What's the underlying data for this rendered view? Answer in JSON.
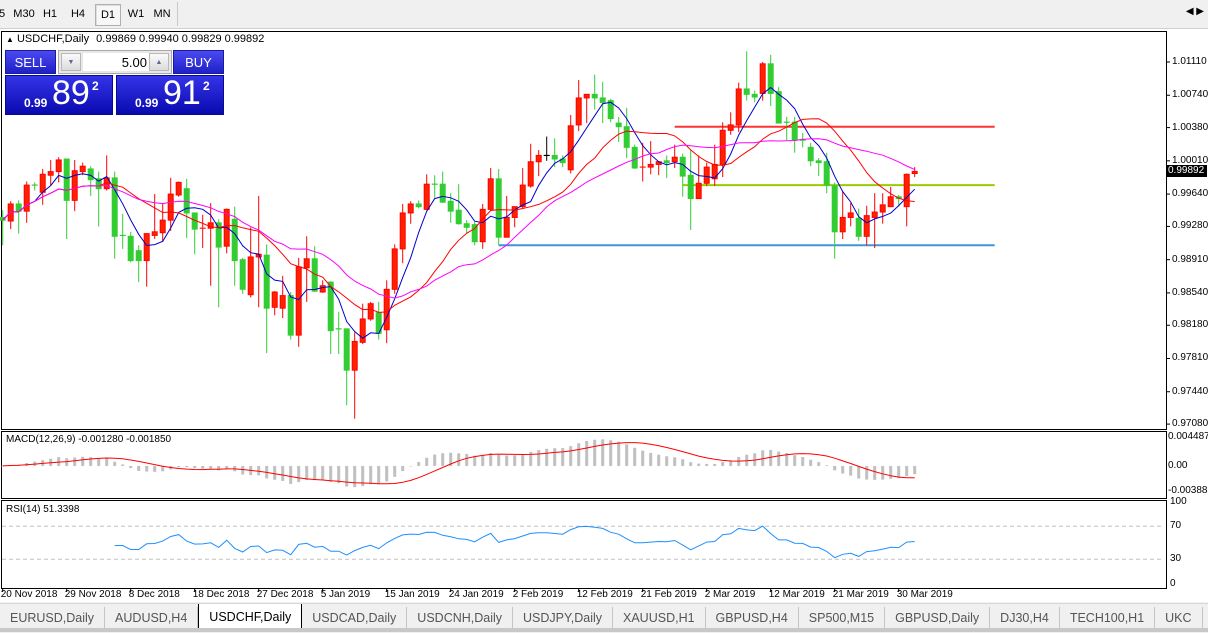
{
  "toolbar": {
    "timeframes": [
      {
        "label": "5",
        "active": false
      },
      {
        "label": "M30",
        "active": false
      },
      {
        "label": "H1",
        "active": false
      },
      {
        "label": "H4",
        "active": false
      },
      {
        "label": "D1",
        "active": true
      },
      {
        "label": "W1",
        "active": false
      },
      {
        "label": "MN",
        "active": false
      }
    ]
  },
  "chart": {
    "header_arrow": "▲",
    "symbol": "USDCHF,Daily",
    "ohlc": "0.99869 0.99940 0.99829 0.99892",
    "last_price": "0.99892",
    "price_axis": [
      "1.01110",
      "1.00740",
      "1.00380",
      "1.00010",
      "0.99640",
      "0.99280",
      "0.98910",
      "0.98540",
      "0.98180",
      "0.97810",
      "0.97440",
      "0.97080"
    ],
    "date_labels": [
      "20 Nov 2018",
      "29 Nov 2018",
      "8 Dec 2018",
      "18 Dec 2018",
      "27 Dec 2018",
      "5 Jan 2019",
      "15 Jan 2019",
      "24 Jan 2019",
      "2 Feb 2019",
      "12 Feb 2019",
      "21 Feb 2019",
      "2 Mar 2019",
      "12 Mar 2019",
      "21 Mar 2019",
      "30 Mar 2019"
    ]
  },
  "trade_panel": {
    "sell_label": "SELL",
    "buy_label": "BUY",
    "lot": "5.00",
    "down_arrow": "▼",
    "up_arrow": "▲",
    "sell_price": {
      "prefix": "0.99",
      "big": "89",
      "sup": "2"
    },
    "buy_price": {
      "prefix": "0.99",
      "big": "91",
      "sup": "2"
    }
  },
  "macd": {
    "label": "MACD(12,26,9) -0.001280 -0.001850",
    "axis": [
      "0.004487",
      "0.00",
      "-0.003883"
    ]
  },
  "rsi": {
    "label": "RSI(14) 51.3398",
    "axis": [
      "100",
      "70",
      "30",
      "0"
    ]
  },
  "colors": {
    "bull_candle": "#ff2200",
    "bear_candle": "#32cd32",
    "ma_fast": "#0000cc",
    "ma_mid": "#ff0000",
    "ma_slow": "#ff00ff",
    "macd_hist": "#c0c0c0",
    "macd_signal": "#ff0000",
    "rsi_line": "#1e90ff",
    "accent_panel": "#2222d0"
  },
  "tabs": [
    {
      "label": "EURUSD,Daily",
      "active": false
    },
    {
      "label": "AUDUSD,H4",
      "active": false
    },
    {
      "label": "USDCHF,Daily",
      "active": true
    },
    {
      "label": "USDCAD,Daily",
      "active": false
    },
    {
      "label": "USDCNH,Daily",
      "active": false
    },
    {
      "label": "USDJPY,Daily",
      "active": false
    },
    {
      "label": "XAUUSD,H1",
      "active": false
    },
    {
      "label": "GBPUSD,H4",
      "active": false
    },
    {
      "label": "SP500,M15",
      "active": false
    },
    {
      "label": "GBPUSD,Daily",
      "active": false
    },
    {
      "label": "DJ30,H4",
      "active": false
    },
    {
      "label": "TECH100,H1",
      "active": false
    },
    {
      "label": "UKC",
      "active": false
    }
  ],
  "tab_nav": "◀ ▶",
  "chart_data": {
    "type": "candlestick",
    "symbol": "USDCHF",
    "timeframe": "Daily",
    "ylim": [
      0.9708,
      1.0111
    ],
    "grid": false,
    "ohlc": [
      [
        0.9938,
        0.9946,
        0.9907,
        0.9935
      ],
      [
        0.9934,
        0.9956,
        0.9925,
        0.9953
      ],
      [
        0.9953,
        0.9957,
        0.992,
        0.9945
      ],
      [
        0.9945,
        0.9978,
        0.9932,
        0.9974
      ],
      [
        0.9974,
        0.9977,
        0.9968,
        0.9973
      ],
      [
        0.9966,
        0.9992,
        0.9952,
        0.9986
      ],
      [
        0.9985,
        1.0002,
        0.9974,
        0.9989
      ],
      [
        0.9989,
        1.0005,
        0.9977,
        1.0002
      ],
      [
        1.0003,
        1.0003,
        0.9914,
        0.9957
      ],
      [
        0.9957,
        1.0002,
        0.9945,
        0.999
      ],
      [
        0.9989,
        0.9999,
        0.9985,
        0.9995
      ],
      [
        0.9992,
        0.9995,
        0.9962,
        0.998
      ],
      [
        0.9981,
        0.9989,
        0.9928,
        0.997
      ],
      [
        0.997,
        1.0007,
        0.9968,
        0.9982
      ],
      [
        0.9982,
        0.9989,
        0.9892,
        0.9917
      ],
      [
        0.9918,
        0.9942,
        0.9903,
        0.9917
      ],
      [
        0.9917,
        0.9922,
        0.9888,
        0.989
      ],
      [
        0.9901,
        0.9907,
        0.9866,
        0.989
      ],
      [
        0.989,
        0.992,
        0.9861,
        0.992
      ],
      [
        0.9918,
        0.9964,
        0.9914,
        0.9922
      ],
      [
        0.9921,
        0.9953,
        0.9911,
        0.9935
      ],
      [
        0.9935,
        0.9982,
        0.9923,
        0.9964
      ],
      [
        0.9963,
        0.9978,
        0.9961,
        0.9977
      ],
      [
        0.997,
        0.9981,
        0.9915,
        0.9943
      ],
      [
        0.9943,
        0.9943,
        0.9897,
        0.9925
      ],
      [
        0.9925,
        0.9941,
        0.9904,
        0.9926
      ],
      [
        0.9926,
        0.9954,
        0.9862,
        0.9932
      ],
      [
        0.9932,
        0.9936,
        0.9838,
        0.9905
      ],
      [
        0.9906,
        0.9948,
        0.9898,
        0.9947
      ],
      [
        0.9936,
        0.995,
        0.9862,
        0.989
      ],
      [
        0.9891,
        0.9893,
        0.9853,
        0.9858
      ],
      [
        0.9852,
        0.9927,
        0.9849,
        0.9894
      ],
      [
        0.9894,
        0.9962,
        0.9838,
        0.9897
      ],
      [
        0.9896,
        0.9908,
        0.9787,
        0.9837
      ],
      [
        0.9838,
        0.9856,
        0.9829,
        0.9855
      ],
      [
        0.9837,
        0.9873,
        0.9826,
        0.9851
      ],
      [
        0.9851,
        0.9855,
        0.9802,
        0.9807
      ],
      [
        0.9807,
        0.9893,
        0.9794,
        0.9883
      ],
      [
        0.9882,
        0.9917,
        0.9844,
        0.9892
      ],
      [
        0.9892,
        0.9906,
        0.9855,
        0.9856
      ],
      [
        0.9855,
        0.9868,
        0.9854,
        0.9862
      ],
      [
        0.9866,
        0.9867,
        0.9786,
        0.9812
      ],
      [
        0.9814,
        0.9833,
        0.9786,
        0.9813
      ],
      [
        0.9814,
        0.9814,
        0.9729,
        0.9768
      ],
      [
        0.9768,
        0.981,
        0.9714,
        0.98
      ],
      [
        0.9799,
        0.9842,
        0.9797,
        0.9825
      ],
      [
        0.9825,
        0.9844,
        0.9823,
        0.9842
      ],
      [
        0.9832,
        0.9844,
        0.9802,
        0.9809
      ],
      [
        0.9813,
        0.9868,
        0.9798,
        0.9858
      ],
      [
        0.9858,
        0.9908,
        0.9853,
        0.9903
      ],
      [
        0.9903,
        0.9953,
        0.9887,
        0.9943
      ],
      [
        0.9943,
        0.9956,
        0.9931,
        0.9953
      ],
      [
        0.9953,
        0.9957,
        0.9948,
        0.995
      ],
      [
        0.9947,
        0.9986,
        0.9946,
        0.9975
      ],
      [
        0.9975,
        0.9985,
        0.996,
        0.9974
      ],
      [
        0.9975,
        0.9989,
        0.9954,
        0.9955
      ],
      [
        0.9956,
        0.9965,
        0.9932,
        0.9945
      ],
      [
        0.9946,
        0.9975,
        0.993,
        0.9931
      ],
      [
        0.9931,
        0.9935,
        0.992,
        0.9927
      ],
      [
        0.993,
        0.9933,
        0.9907,
        0.9911
      ],
      [
        0.9911,
        0.9953,
        0.9903,
        0.9947
      ],
      [
        0.9947,
        0.9993,
        0.9946,
        0.9981
      ],
      [
        0.9981,
        0.9992,
        0.9907,
        0.9916
      ],
      [
        0.9916,
        0.9962,
        0.9916,
        0.9938
      ],
      [
        0.9938,
        0.995,
        0.9927,
        0.995
      ],
      [
        0.995,
        0.9993,
        0.9948,
        0.9974
      ],
      [
        0.9973,
        1.002,
        0.9971,
        1.0
      ],
      [
        1.0,
        1.0013,
        0.9984,
        1.0007
      ],
      [
        1.0007,
        1.0028,
        1.0001,
        1.0007
      ],
      [
        1.0007,
        1.0026,
        0.9994,
        1.0003
      ],
      [
        1.0003,
        1.0007,
        0.9994,
        0.9999
      ],
      [
        0.9991,
        1.0052,
        0.9987,
        1.004
      ],
      [
        1.0041,
        1.0091,
        1.0034,
        1.0071
      ],
      [
        1.0071,
        1.0075,
        1.0043,
        1.0075
      ],
      [
        1.0075,
        1.0097,
        1.0058,
        1.0071
      ],
      [
        1.0071,
        1.0089,
        1.0043,
        1.0066
      ],
      [
        1.0068,
        1.007,
        1.0044,
        1.0048
      ],
      [
        1.0043,
        1.005,
        1.0022,
        1.0039
      ],
      [
        1.0039,
        1.006,
        1.0004,
        1.0016
      ],
      [
        1.0016,
        1.0019,
        0.9992,
        0.9993
      ],
      [
        0.9993,
        1.0021,
        0.9978,
        0.9994
      ],
      [
        0.9994,
        1.0023,
        0.9986,
        0.9997
      ],
      [
        0.9997,
        1.0,
        0.9985,
        1.0
      ],
      [
        1.0001,
        1.0007,
        0.9982,
        0.9999
      ],
      [
        1.0,
        1.0019,
        0.9993,
        1.0005
      ],
      [
        1.0005,
        1.0009,
        0.9961,
        0.9984
      ],
      [
        0.9985,
        1.0013,
        0.9924,
        0.9959
      ],
      [
        0.9959,
        1.0007,
        0.9959,
        0.9976
      ],
      [
        0.9976,
        0.9999,
        0.9973,
        0.9994
      ],
      [
        0.9981,
        1.0019,
        0.9973,
        0.9997
      ],
      [
        0.9997,
        1.0044,
        0.9983,
        1.0035
      ],
      [
        1.0035,
        1.0055,
        1.003,
        1.0041
      ],
      [
        1.0041,
        1.0088,
        1.0033,
        1.0081
      ],
      [
        1.0081,
        1.0123,
        1.0068,
        1.0075
      ],
      [
        1.0075,
        1.0079,
        1.0066,
        1.0072
      ],
      [
        1.0076,
        1.0111,
        1.0068,
        1.0109
      ],
      [
        1.0109,
        1.0119,
        1.0062,
        1.0076
      ],
      [
        1.0078,
        1.0083,
        1.0043,
        1.0043
      ],
      [
        1.0044,
        1.005,
        1.0024,
        1.0043
      ],
      [
        1.0044,
        1.005,
        1.001,
        1.0024
      ],
      [
        1.0024,
        1.0032,
        1.0016,
        1.0023
      ],
      [
        1.0016,
        1.0021,
        0.9995,
        1.0001
      ],
      [
        1.0001,
        1.0004,
        0.9984,
        0.9999
      ],
      [
        1.0,
        1.001,
        0.9965,
        0.9974
      ],
      [
        0.9973,
        0.9977,
        0.9892,
        0.9922
      ],
      [
        0.9922,
        0.9967,
        0.9914,
        0.9938
      ],
      [
        0.9938,
        0.9954,
        0.9928,
        0.9943
      ],
      [
        0.9937,
        0.9948,
        0.9912,
        0.9917
      ],
      [
        0.9917,
        0.9951,
        0.9907,
        0.994
      ],
      [
        0.9938,
        0.9965,
        0.9904,
        0.9944
      ],
      [
        0.9944,
        0.9965,
        0.9931,
        0.9952
      ],
      [
        0.995,
        0.9972,
        0.995,
        0.9961
      ],
      [
        0.9961,
        0.9963,
        0.995,
        0.9959
      ],
      [
        0.995,
        0.9987,
        0.9928,
        0.9986
      ],
      [
        0.99869,
        0.9994,
        0.99829,
        0.99892
      ]
    ],
    "horizontal_lines": [
      {
        "price": 1.0039,
        "start_bar": 84,
        "end_bar": 124,
        "color": "#ff3333"
      },
      {
        "price": 0.9974,
        "start_bar": 85,
        "end_bar": 124,
        "color": "#99cc00"
      },
      {
        "price": 0.9907,
        "start_bar": 62,
        "end_bar": 124,
        "color": "#3c96dc"
      }
    ],
    "macd_range": [
      -0.003883,
      0.004487
    ],
    "rsi_levels": [
      30,
      70
    ]
  }
}
